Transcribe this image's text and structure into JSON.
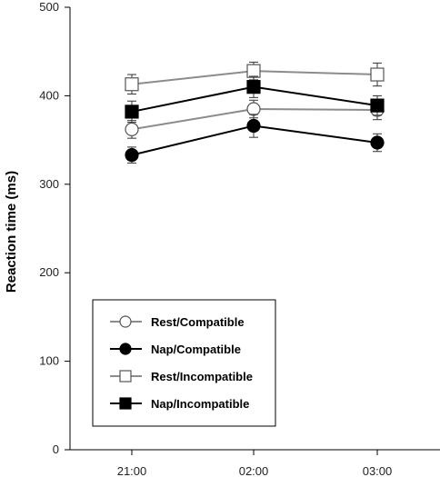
{
  "chart_data": {
    "type": "line",
    "title": "",
    "xlabel": "",
    "ylabel": "Reaction time (ms)",
    "categories": [
      "21:00",
      "02:00",
      "03:00"
    ],
    "ylim": [
      0,
      500
    ],
    "yticks": [
      0,
      100,
      200,
      300,
      400,
      500
    ],
    "grid": false,
    "legend_position": "bottom-left",
    "series": [
      {
        "name": "Rest/Compatible",
        "values": [
          362,
          385,
          384
        ],
        "errors": [
          10,
          10,
          11
        ],
        "marker": "circle",
        "filled": false,
        "line_color": "#8c8c8c"
      },
      {
        "name": "Nap/Compatible",
        "values": [
          333,
          366,
          347
        ],
        "errors": [
          9,
          13,
          10
        ],
        "marker": "circle",
        "filled": true,
        "line_color": "#000000"
      },
      {
        "name": "Rest/Incompatible",
        "values": [
          413,
          428,
          424
        ],
        "errors": [
          11,
          10,
          13
        ],
        "marker": "square",
        "filled": false,
        "line_color": "#8c8c8c"
      },
      {
        "name": "Nap/Incompatible",
        "values": [
          382,
          410,
          389
        ],
        "errors": [
          12,
          12,
          11
        ],
        "marker": "square",
        "filled": true,
        "line_color": "#000000"
      }
    ]
  }
}
